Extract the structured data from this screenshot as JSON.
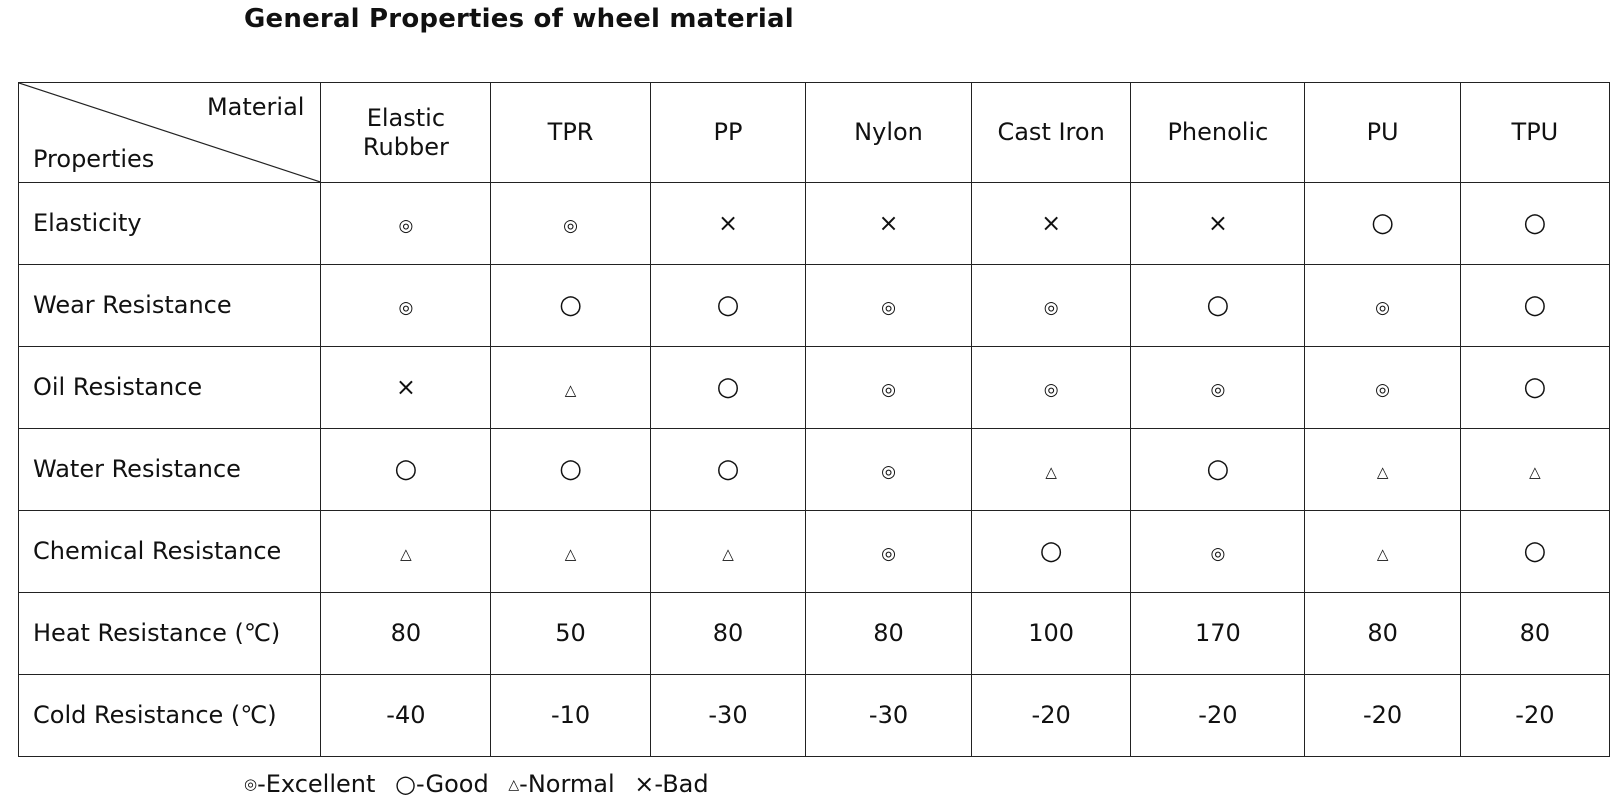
{
  "title": "General Properties of wheel material",
  "table": {
    "corner_material": "Material",
    "corner_properties": "Properties",
    "columns": [
      {
        "line1": "Elastic",
        "line2": "Rubber"
      },
      {
        "line1": "TPR",
        "line2": ""
      },
      {
        "line1": "PP",
        "line2": ""
      },
      {
        "line1": "Nylon",
        "line2": ""
      },
      {
        "line1": "Cast Iron",
        "line2": ""
      },
      {
        "line1": "Phenolic",
        "line2": ""
      },
      {
        "line1": "PU",
        "line2": ""
      },
      {
        "line1": "TPU",
        "line2": ""
      }
    ],
    "rows": [
      {
        "label": "Elasticity",
        "cells": [
          "◎",
          "◎",
          "×",
          "×",
          "×",
          "×",
          "○",
          "○"
        ]
      },
      {
        "label": "Wear Resistance",
        "cells": [
          "◎",
          "○",
          "○",
          "◎",
          "◎",
          "○",
          "◎",
          "○"
        ]
      },
      {
        "label": "Oil Resistance",
        "cells": [
          "×",
          "△",
          "○",
          "◎",
          "◎",
          "◎",
          "◎",
          "○"
        ]
      },
      {
        "label": "Water Resistance",
        "cells": [
          "○",
          "○",
          "○",
          "◎",
          "△",
          "○",
          "△",
          "△"
        ]
      },
      {
        "label": "Chemical Resistance",
        "cells": [
          "△",
          "△",
          "△",
          "◎",
          "○",
          "◎",
          "△",
          "○"
        ]
      },
      {
        "label": "Heat Resistance (℃)",
        "cells": [
          "80",
          "50",
          "80",
          "80",
          "100",
          "170",
          "80",
          "80"
        ]
      },
      {
        "label": "Cold Resistance (℃)",
        "cells": [
          "-40",
          "-10",
          "-30",
          "-30",
          "-20",
          "-20",
          "-20",
          "-20"
        ]
      }
    ]
  },
  "legend": {
    "excellent_symbol": "◎",
    "excellent_label": "-Excellent",
    "good_symbol": "○",
    "good_label": "-Good",
    "normal_symbol": "△",
    "normal_label": "-Normal",
    "bad_symbol": "×",
    "bad_label": "-Bad"
  }
}
